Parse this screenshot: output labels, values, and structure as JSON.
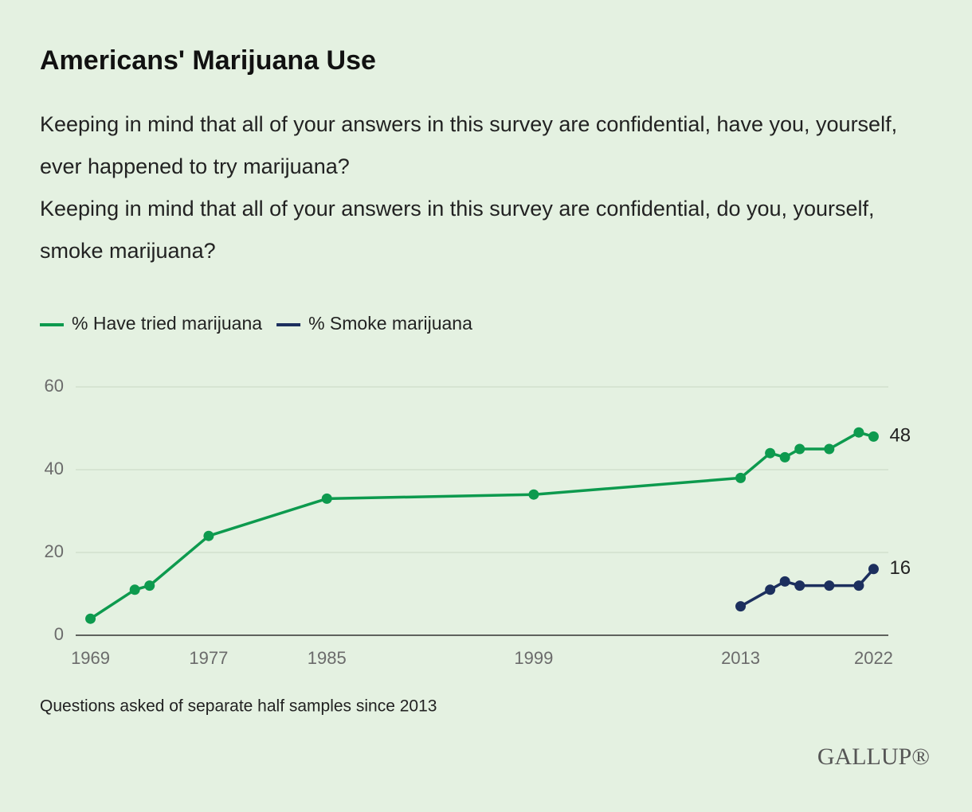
{
  "chart_data": {
    "type": "line",
    "title": "Americans' Marijuana Use",
    "questions": [
      "Keeping in mind that all of your answers in this survey are confidential, have you, yourself, ever happened to try marijuana?",
      "Keeping in mind that all of your answers in this survey are confidential, do you, yourself, smoke marijuana?"
    ],
    "x": [
      1969,
      1972,
      1973,
      1977,
      1985,
      1999,
      2013,
      2015,
      2016,
      2017,
      2019,
      2021,
      2022
    ],
    "series": [
      {
        "name": "% Have tried marijuana",
        "color": "#0d9a4e",
        "values": [
          4,
          11,
          12,
          24,
          33,
          34,
          38,
          44,
          43,
          45,
          45,
          49,
          48
        ]
      },
      {
        "name": "% Smoke marijuana",
        "color": "#1c2f5e",
        "values": [
          null,
          null,
          null,
          null,
          null,
          null,
          7,
          11,
          13,
          12,
          12,
          12,
          16
        ]
      }
    ],
    "xlim": [
      1968,
      2023
    ],
    "xticks": [
      1969,
      1977,
      1985,
      1999,
      2013,
      2022
    ],
    "ylim": [
      0,
      60
    ],
    "yticks": [
      0,
      20,
      40,
      60
    ],
    "grid": true,
    "note": "Questions asked of separate half samples since 2013",
    "source": "GALLUP®"
  }
}
